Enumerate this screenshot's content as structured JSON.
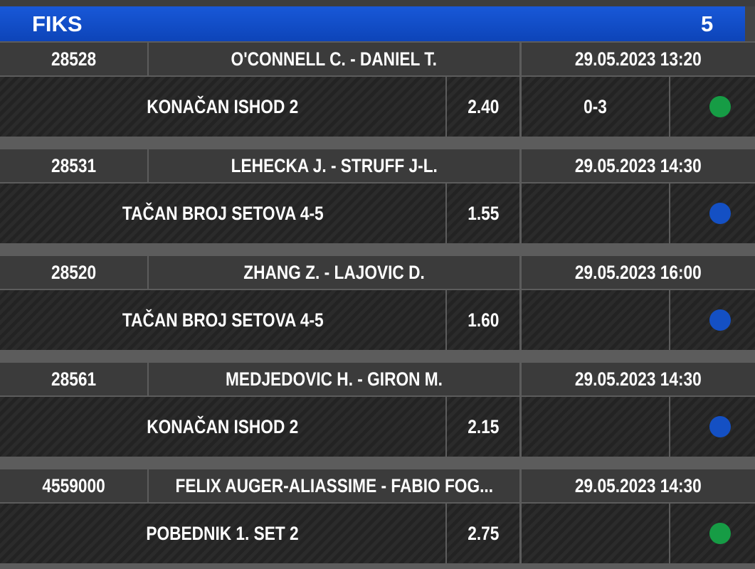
{
  "header": {
    "title": "FIKS",
    "count": 5
  },
  "tickets": [
    {
      "id": "28528",
      "match": "O'CONNELL C. - DANIEL T.",
      "date": "29.05.2023 13:20",
      "market": "KONAČAN ISHOD 2",
      "odds": "2.40",
      "score": "0-3",
      "status_color": "#169c45"
    },
    {
      "id": "28531",
      "match": "LEHECKA J. - STRUFF J-L.",
      "date": "29.05.2023 14:30",
      "market": "TAČAN BROJ SETOVA 4-5",
      "odds": "1.55",
      "status_color": "#1450c4"
    },
    {
      "id": "28520",
      "match": "ZHANG Z. - LAJOVIC D.",
      "date": "29.05.2023 16:00",
      "market": "TAČAN BROJ SETOVA 4-5",
      "odds": "1.60",
      "status_color": "#1450c4"
    },
    {
      "id": "28561",
      "match": "MEDJEDOVIC H. - GIRON M.",
      "date": "29.05.2023 14:30",
      "market": "KONAČAN ISHOD 2",
      "odds": "2.15",
      "status_color": "#1450c4"
    },
    {
      "id": "4559000",
      "match": "FELIX AUGER-ALIASSIME - FABIO FOG...",
      "date": "29.05.2023 14:30",
      "market": "POBEDNIK 1. SET 2",
      "odds": "2.75",
      "status_color": "#169c45"
    }
  ]
}
